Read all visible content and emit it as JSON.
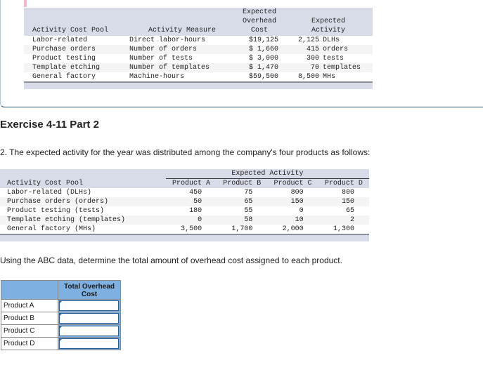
{
  "cost_pool_table": {
    "headers": {
      "pool": "Activity Cost Pool",
      "measure": "Activity Measure",
      "cost_line1": "Expected",
      "cost_line2": "Overhead",
      "cost_line3": "Cost",
      "activity_line1": "Expected",
      "activity_line2": "Activity"
    },
    "rows": [
      {
        "pool": "Labor-related",
        "measure": "Direct labor-hours",
        "cost": "$19,125",
        "activity": "2,125",
        "unit": "DLHs"
      },
      {
        "pool": "Purchase orders",
        "measure": "Number of orders",
        "cost": "$ 1,660",
        "activity": "415",
        "unit": "orders"
      },
      {
        "pool": "Product testing",
        "measure": "Number of tests",
        "cost": "$ 3,000",
        "activity": "300",
        "unit": "tests"
      },
      {
        "pool": "Template etching",
        "measure": "Number of templates",
        "cost": "$ 1,470",
        "activity": "70",
        "unit": "templates"
      },
      {
        "pool": "General factory",
        "measure": "Machine-hours",
        "cost": "$59,500",
        "activity": "8,500",
        "unit": "MHs"
      }
    ]
  },
  "exercise": {
    "title": "Exercise 4-11 Part 2",
    "prompt": "2. The expected activity for the year was distributed among the company's four products as follows:",
    "question": "Using the ABC data, determine the total amount of overhead cost assigned to each product."
  },
  "distribution_table": {
    "group_header": "Expected Activity",
    "pool_header": "Activity Cost Pool",
    "products": [
      "Product A",
      "Product B",
      "Product C",
      "Product D"
    ],
    "rows": [
      {
        "pool": "Labor-related (DLHs)",
        "values": [
          "450",
          "75",
          "800",
          "800"
        ]
      },
      {
        "pool": "Purchase orders (orders)",
        "values": [
          "50",
          "65",
          "150",
          "150"
        ]
      },
      {
        "pool": "Product testing (tests)",
        "values": [
          "180",
          "55",
          "0",
          "65"
        ]
      },
      {
        "pool": "Template etching (templates)",
        "values": [
          "0",
          "58",
          "10",
          "2"
        ]
      },
      {
        "pool": "General factory (MHs)",
        "values": [
          "3,500",
          "1,700",
          "2,000",
          "1,300"
        ]
      }
    ]
  },
  "answer_table": {
    "header": "Total Overhead Cost",
    "rows": [
      {
        "label": "Product A",
        "value": ""
      },
      {
        "label": "Product B",
        "value": ""
      },
      {
        "label": "Product C",
        "value": ""
      },
      {
        "label": "Product D",
        "value": ""
      }
    ]
  },
  "colors": {
    "header_bg": "#d8dce8",
    "answer_header_bg": "#7fb0e2",
    "panel_border": "#1f4e79",
    "accent_pink": "#f2b6cf"
  }
}
